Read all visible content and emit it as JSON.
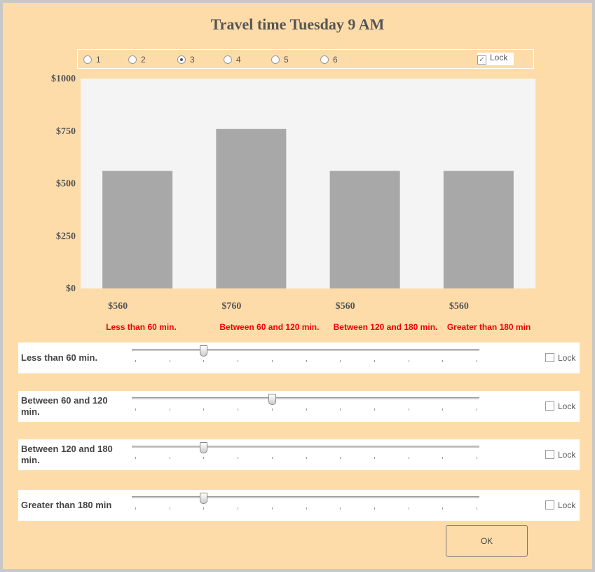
{
  "title": "Travel time Tuesday 9 AM",
  "options": {
    "labels": [
      "1",
      "2",
      "3",
      "4",
      "5",
      "6"
    ],
    "selected": 2,
    "lock_label": "Lock",
    "lock_checked": true
  },
  "chart_data": {
    "type": "bar",
    "categories": [
      "Less than 60 min.",
      "Between 60 and 120 min.",
      "Between 120 and 180 min.",
      "Greater than 180 min"
    ],
    "values": [
      560,
      760,
      560,
      560
    ],
    "value_labels": [
      "$560",
      "$760",
      "$560",
      "$560"
    ],
    "color": "#a8a8a8",
    "ylim": [
      0,
      1000
    ],
    "yticks": [
      {
        "value": 0,
        "label": "$0"
      },
      {
        "value": 250,
        "label": "$250"
      },
      {
        "value": 500,
        "label": "$500"
      },
      {
        "value": 750,
        "label": "$750"
      },
      {
        "value": 1000,
        "label": "$1000"
      }
    ]
  },
  "sliders": {
    "max": 10,
    "items": [
      {
        "label": "Less than 60 min.",
        "position": 2,
        "lock_label": "Lock"
      },
      {
        "label": "Between 60 and 120 min.",
        "position": 4,
        "lock_label": "Lock"
      },
      {
        "label": "Between 120 and 180 min.",
        "position": 2,
        "lock_label": "Lock"
      },
      {
        "label": "Greater than 180 min",
        "position": 2,
        "lock_label": "Lock"
      }
    ]
  },
  "ok_button": "OK"
}
